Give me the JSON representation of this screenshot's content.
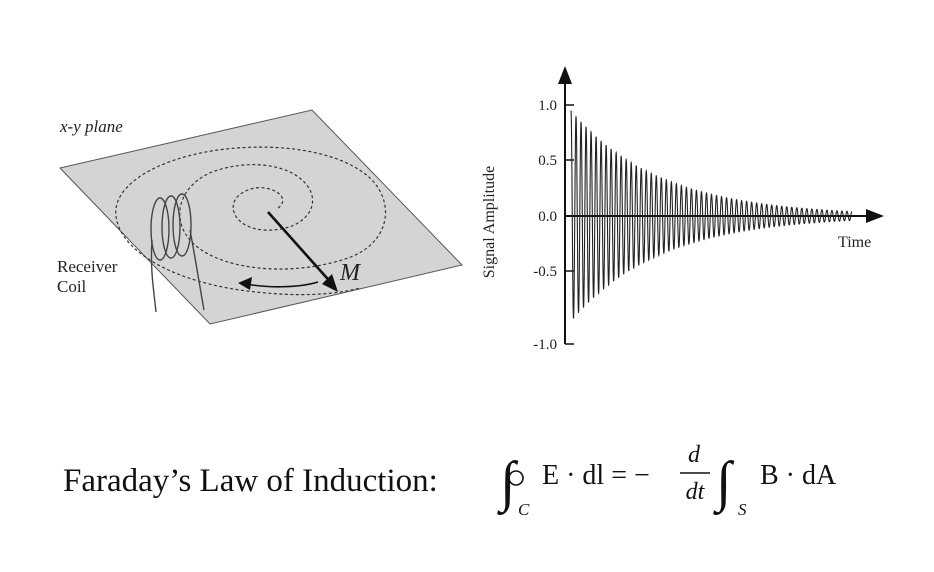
{
  "diagram": {
    "plane_label": "x-y plane",
    "coil_label_line1": "Receiver",
    "coil_label_line2": "Coil",
    "magnetization_label": "M"
  },
  "chart_data": {
    "type": "line",
    "title": "",
    "xlabel": "Time",
    "ylabel": "Signal Amplitude",
    "ylim": [
      -1.0,
      1.0
    ],
    "yticks": [
      "1.0",
      "0.5",
      "0.0",
      "-0.5",
      "-1.0"
    ],
    "ytick_values": [
      1.0,
      0.5,
      0.0,
      -0.5,
      -1.0
    ],
    "series": [
      {
        "description_visible": "decaying sinusoid",
        "amplitude_start": 0.95,
        "decay_to_at_end": 0.04,
        "cycles": 56
      }
    ],
    "grid": false
  },
  "equation": {
    "prefix": "Faraday’s Law of Induction:",
    "contour_sub": "C",
    "surface_sub": "S",
    "lhs": "E · dl = −",
    "frac_num": "d",
    "frac_den": "dt",
    "rhs": "B · dA"
  }
}
